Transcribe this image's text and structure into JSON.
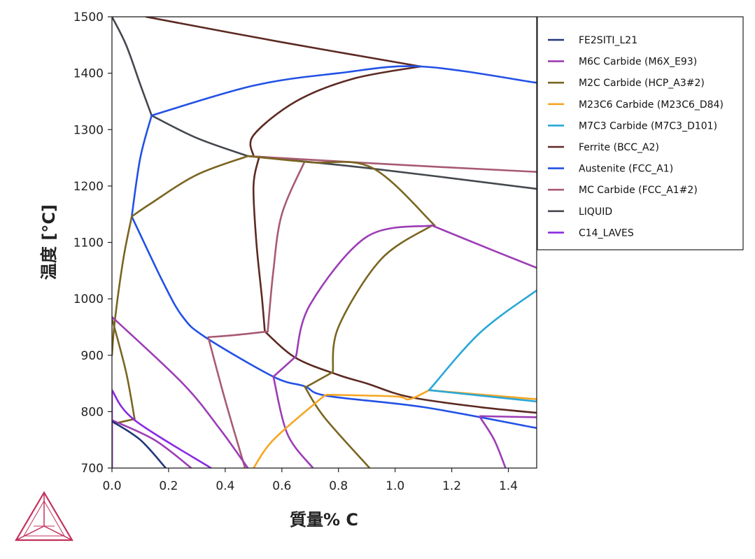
{
  "chart_data": {
    "type": "line",
    "xlabel": "質量% C",
    "ylabel": "温度 [°C]",
    "xlim": [
      0,
      1.5
    ],
    "ylim": [
      700,
      1500
    ],
    "xticks": [
      "0.0",
      "0.2",
      "0.4",
      "0.6",
      "0.8",
      "1.0",
      "1.2",
      "1.4"
    ],
    "yticks": [
      "700",
      "800",
      "900",
      "1000",
      "1100",
      "1200",
      "1300",
      "1400",
      "1500"
    ],
    "legend_position": "top-right",
    "grid": false,
    "legend": [
      {
        "label": "FE2SITI_L21",
        "color": "#22367a"
      },
      {
        "label": "M6C Carbide (M6X_E93)",
        "color": "#9c3db5"
      },
      {
        "label": "M2C Carbide (HCP_A3#2)",
        "color": "#7a6520"
      },
      {
        "label": "M23C6 Carbide (M23C6_D84)",
        "color": "#f5a623"
      },
      {
        "label": "M7C3 Carbide (M7C3_D101)",
        "color": "#2aa7d8"
      },
      {
        "label": "Ferrite (BCC_A2)",
        "color": "#5c2a22"
      },
      {
        "label": "Austenite (FCC_A1)",
        "color": "#2251e6"
      },
      {
        "label": "MC Carbide (FCC_A1#2)",
        "color": "#a85a72"
      },
      {
        "label": "LIQUID",
        "color": "#44484e"
      },
      {
        "label": "C14_LAVES",
        "color": "#8a2be2"
      }
    ],
    "series": [
      {
        "key": "liquid",
        "color": "#44484e",
        "segments": [
          [
            [
              0.0,
              1500
            ],
            [
              0.05,
              1450
            ],
            [
              0.1,
              1380
            ],
            [
              0.14,
              1325
            ]
          ],
          [
            [
              0.14,
              1325
            ],
            [
              0.3,
              1285
            ],
            [
              0.48,
              1253
            ]
          ],
          [
            [
              0.48,
              1253
            ],
            [
              0.9,
              1232
            ],
            [
              1.5,
              1195
            ]
          ]
        ]
      },
      {
        "key": "ferrite",
        "color": "#5c2a22",
        "segments": [
          [
            [
              0.12,
              1500
            ],
            [
              0.6,
              1455
            ],
            [
              1.09,
              1412
            ]
          ],
          [
            [
              1.09,
              1412
            ],
            [
              0.85,
              1390
            ],
            [
              0.65,
              1350
            ],
            [
              0.5,
              1290
            ],
            [
              0.5,
              1253
            ]
          ],
          [
            [
              0.52,
              1252
            ],
            [
              0.5,
              1200
            ],
            [
              0.51,
              1100
            ],
            [
              0.53,
              1000
            ],
            [
              0.54,
              942
            ]
          ],
          [
            [
              0.54,
              942
            ],
            [
              0.65,
              895
            ],
            [
              0.8,
              865
            ],
            [
              0.9,
              850
            ],
            [
              1.05,
              826
            ],
            [
              1.3,
              808
            ],
            [
              1.5,
              798
            ]
          ]
        ]
      },
      {
        "key": "austenite",
        "color": "#2251e6",
        "segments": [
          [
            [
              0.14,
              1325
            ],
            [
              0.5,
              1378
            ],
            [
              0.8,
              1400
            ],
            [
              1.09,
              1412
            ],
            [
              1.5,
              1383
            ]
          ],
          [
            [
              0.14,
              1325
            ],
            [
              0.1,
              1250
            ],
            [
              0.07,
              1146
            ]
          ],
          [
            [
              0.07,
              1146
            ],
            [
              0.18,
              1030
            ],
            [
              0.25,
              968
            ],
            [
              0.33,
              932
            ],
            [
              0.57,
              862
            ],
            [
              0.68,
              845
            ],
            [
              0.76,
              828
            ],
            [
              1.1,
              808
            ],
            [
              1.5,
              771
            ]
          ]
        ]
      },
      {
        "key": "mc",
        "color": "#a85a72",
        "segments": [
          [
            [
              0.48,
              1253
            ],
            [
              1.0,
              1238
            ],
            [
              1.5,
              1225
            ]
          ],
          [
            [
              0.68,
              1243
            ],
            [
              0.6,
              1150
            ],
            [
              0.57,
              1050
            ],
            [
              0.55,
              942
            ]
          ],
          [
            [
              0.55,
              942
            ],
            [
              0.44,
              936
            ],
            [
              0.34,
              932
            ]
          ],
          [
            [
              0.34,
              932
            ],
            [
              0.4,
              820
            ],
            [
              0.47,
              700
            ]
          ]
        ]
      },
      {
        "key": "m2c",
        "color": "#7a6520",
        "segments": [
          [
            [
              0.48,
              1253
            ],
            [
              0.3,
              1220
            ],
            [
              0.14,
              1170
            ],
            [
              0.07,
              1146
            ]
          ],
          [
            [
              0.48,
              1253
            ],
            [
              0.7,
              1242
            ],
            [
              0.92,
              1232
            ],
            [
              1.14,
              1130
            ]
          ],
          [
            [
              0.07,
              1146
            ],
            [
              0.04,
              1070
            ],
            [
              0.01,
              960
            ],
            [
              0.0,
              900
            ]
          ],
          [
            [
              0.0,
              965
            ],
            [
              0.05,
              870
            ],
            [
              0.08,
              787
            ]
          ],
          [
            [
              0.08,
              787
            ],
            [
              0.01,
              779
            ]
          ],
          [
            [
              1.13,
              1130
            ],
            [
              0.95,
              1070
            ],
            [
              0.8,
              950
            ],
            [
              0.78,
              870
            ]
          ],
          [
            [
              0.78,
              870
            ],
            [
              0.69,
              845
            ]
          ],
          [
            [
              0.68,
              845
            ],
            [
              0.75,
              790
            ],
            [
              0.91,
              700
            ]
          ],
          [
            [
              0.0,
              780
            ],
            [
              0.0,
              700
            ]
          ]
        ]
      },
      {
        "key": "m6c",
        "color": "#9c3db5",
        "segments": [
          [
            [
              1.13,
              1130
            ],
            [
              0.9,
              1110
            ],
            [
              0.7,
              990
            ],
            [
              0.65,
              898
            ]
          ],
          [
            [
              0.65,
              898
            ],
            [
              0.57,
              862
            ]
          ],
          [
            [
              0.57,
              862
            ],
            [
              0.62,
              760
            ],
            [
              0.71,
              700
            ]
          ],
          [
            [
              1.13,
              1130
            ],
            [
              1.35,
              1085
            ],
            [
              1.5,
              1055
            ]
          ],
          [
            [
              0.0,
              968
            ],
            [
              0.25,
              850
            ],
            [
              0.38,
              770
            ],
            [
              0.48,
              700
            ]
          ],
          [
            [
              0.0,
              785
            ],
            [
              0.15,
              750
            ],
            [
              0.28,
              700
            ]
          ],
          [
            [
              1.3,
              790
            ],
            [
              1.35,
              750
            ],
            [
              1.39,
              700
            ]
          ],
          [
            [
              1.3,
              792
            ],
            [
              1.5,
              790
            ]
          ]
        ]
      },
      {
        "key": "m23c6",
        "color": "#f5a623",
        "segments": [
          [
            [
              0.5,
              700
            ],
            [
              0.57,
              750
            ],
            [
              0.73,
              820
            ],
            [
              0.76,
              830
            ]
          ],
          [
            [
              0.76,
              830
            ],
            [
              1.0,
              827
            ],
            [
              1.05,
              822
            ],
            [
              1.12,
              838
            ]
          ],
          [
            [
              1.12,
              838
            ],
            [
              1.5,
              822
            ]
          ]
        ]
      },
      {
        "key": "m7c3",
        "color": "#2aa7d8",
        "segments": [
          [
            [
              1.12,
              838
            ],
            [
              1.3,
              940
            ],
            [
              1.5,
              1015
            ]
          ],
          [
            [
              1.12,
              838
            ],
            [
              1.5,
              818
            ]
          ]
        ]
      },
      {
        "key": "laves",
        "color": "#8a2be2",
        "segments": [
          [
            [
              0.0,
              838
            ],
            [
              0.08,
              785
            ],
            [
              0.35,
              700
            ]
          ],
          [
            [
              0.0,
              838
            ],
            [
              0.0,
              700
            ]
          ]
        ]
      },
      {
        "key": "fe2siti",
        "color": "#22367a",
        "segments": [
          [
            [
              0.0,
              783
            ],
            [
              0.1,
              750
            ],
            [
              0.19,
              700
            ]
          ]
        ]
      }
    ]
  }
}
